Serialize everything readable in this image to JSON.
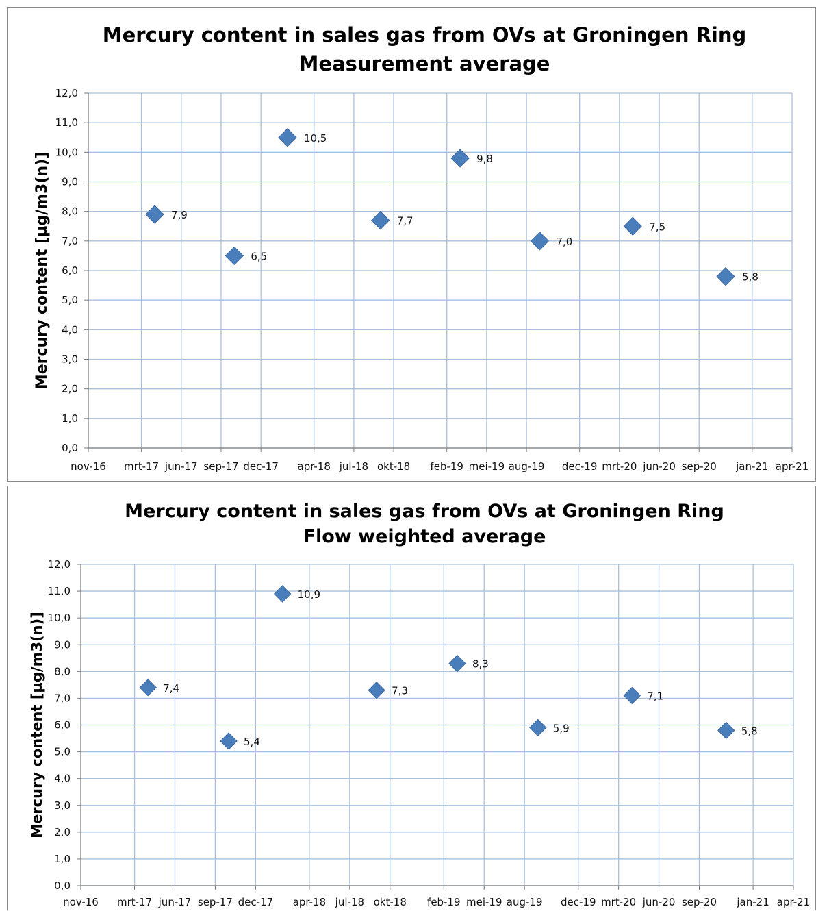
{
  "chart_data": [
    {
      "type": "scatter",
      "title": "Mercury content in sales gas from OVs at Groningen Ring",
      "subtitle": "Measurement average",
      "ylabel": "Mercury content [µg/m3(n)]",
      "xlabel": "",
      "ylim": [
        0,
        12
      ],
      "y_ticks": [
        "0,0",
        "1,0",
        "2,0",
        "3,0",
        "4,0",
        "5,0",
        "6,0",
        "7,0",
        "8,0",
        "9,0",
        "10,0",
        "11,0",
        "12,0"
      ],
      "x_ticks": [
        "nov-16",
        "mrt-17",
        "jun-17",
        "sep-17",
        "dec-17",
        "apr-18",
        "jul-18",
        "okt-18",
        "feb-19",
        "mei-19",
        "aug-19",
        "dec-19",
        "mrt-20",
        "jun-20",
        "sep-20",
        "jan-21",
        "apr-21"
      ],
      "grid": true,
      "marker": "diamond",
      "color": "#4a7ebb",
      "points": [
        {
          "x": "apr-17",
          "y": 7.9,
          "label": "7,9"
        },
        {
          "x": "okt-17",
          "y": 6.5,
          "label": "6,5"
        },
        {
          "x": "feb-18",
          "y": 10.5,
          "label": "10,5"
        },
        {
          "x": "sep-18",
          "y": 7.7,
          "label": "7,7"
        },
        {
          "x": "mrt-19",
          "y": 9.8,
          "label": "9,8"
        },
        {
          "x": "sep-19",
          "y": 7.0,
          "label": "7,0"
        },
        {
          "x": "apr-20",
          "y": 7.5,
          "label": "7,5"
        },
        {
          "x": "nov-20",
          "y": 5.8,
          "label": "5,8"
        }
      ]
    },
    {
      "type": "scatter",
      "title": "Mercury content in sales gas from OVs at Groningen Ring",
      "subtitle": "Flow weighted average",
      "ylabel": "Mercury content [µg/m3(n)]",
      "xlabel": "",
      "ylim": [
        0,
        12
      ],
      "y_ticks": [
        "0,0",
        "1,0",
        "2,0",
        "3,0",
        "4,0",
        "5,0",
        "6,0",
        "7,0",
        "8,0",
        "9,0",
        "10,0",
        "11,0",
        "12,0"
      ],
      "x_ticks": [
        "nov-16",
        "mrt-17",
        "jun-17",
        "sep-17",
        "dec-17",
        "apr-18",
        "jul-18",
        "okt-18",
        "feb-19",
        "mei-19",
        "aug-19",
        "dec-19",
        "mrt-20",
        "jun-20",
        "sep-20",
        "jan-21",
        "apr-21"
      ],
      "grid": true,
      "marker": "diamond",
      "color": "#4a7ebb",
      "points": [
        {
          "x": "apr-17",
          "y": 7.4,
          "label": "7,4"
        },
        {
          "x": "okt-17",
          "y": 5.4,
          "label": "5,4"
        },
        {
          "x": "feb-18",
          "y": 10.9,
          "label": "10,9"
        },
        {
          "x": "sep-18",
          "y": 7.3,
          "label": "7,3"
        },
        {
          "x": "mrt-19",
          "y": 8.3,
          "label": "8,3"
        },
        {
          "x": "sep-19",
          "y": 5.9,
          "label": "5,9"
        },
        {
          "x": "apr-20",
          "y": 7.1,
          "label": "7,1"
        },
        {
          "x": "nov-20",
          "y": 5.8,
          "label": "5,8"
        }
      ]
    }
  ]
}
